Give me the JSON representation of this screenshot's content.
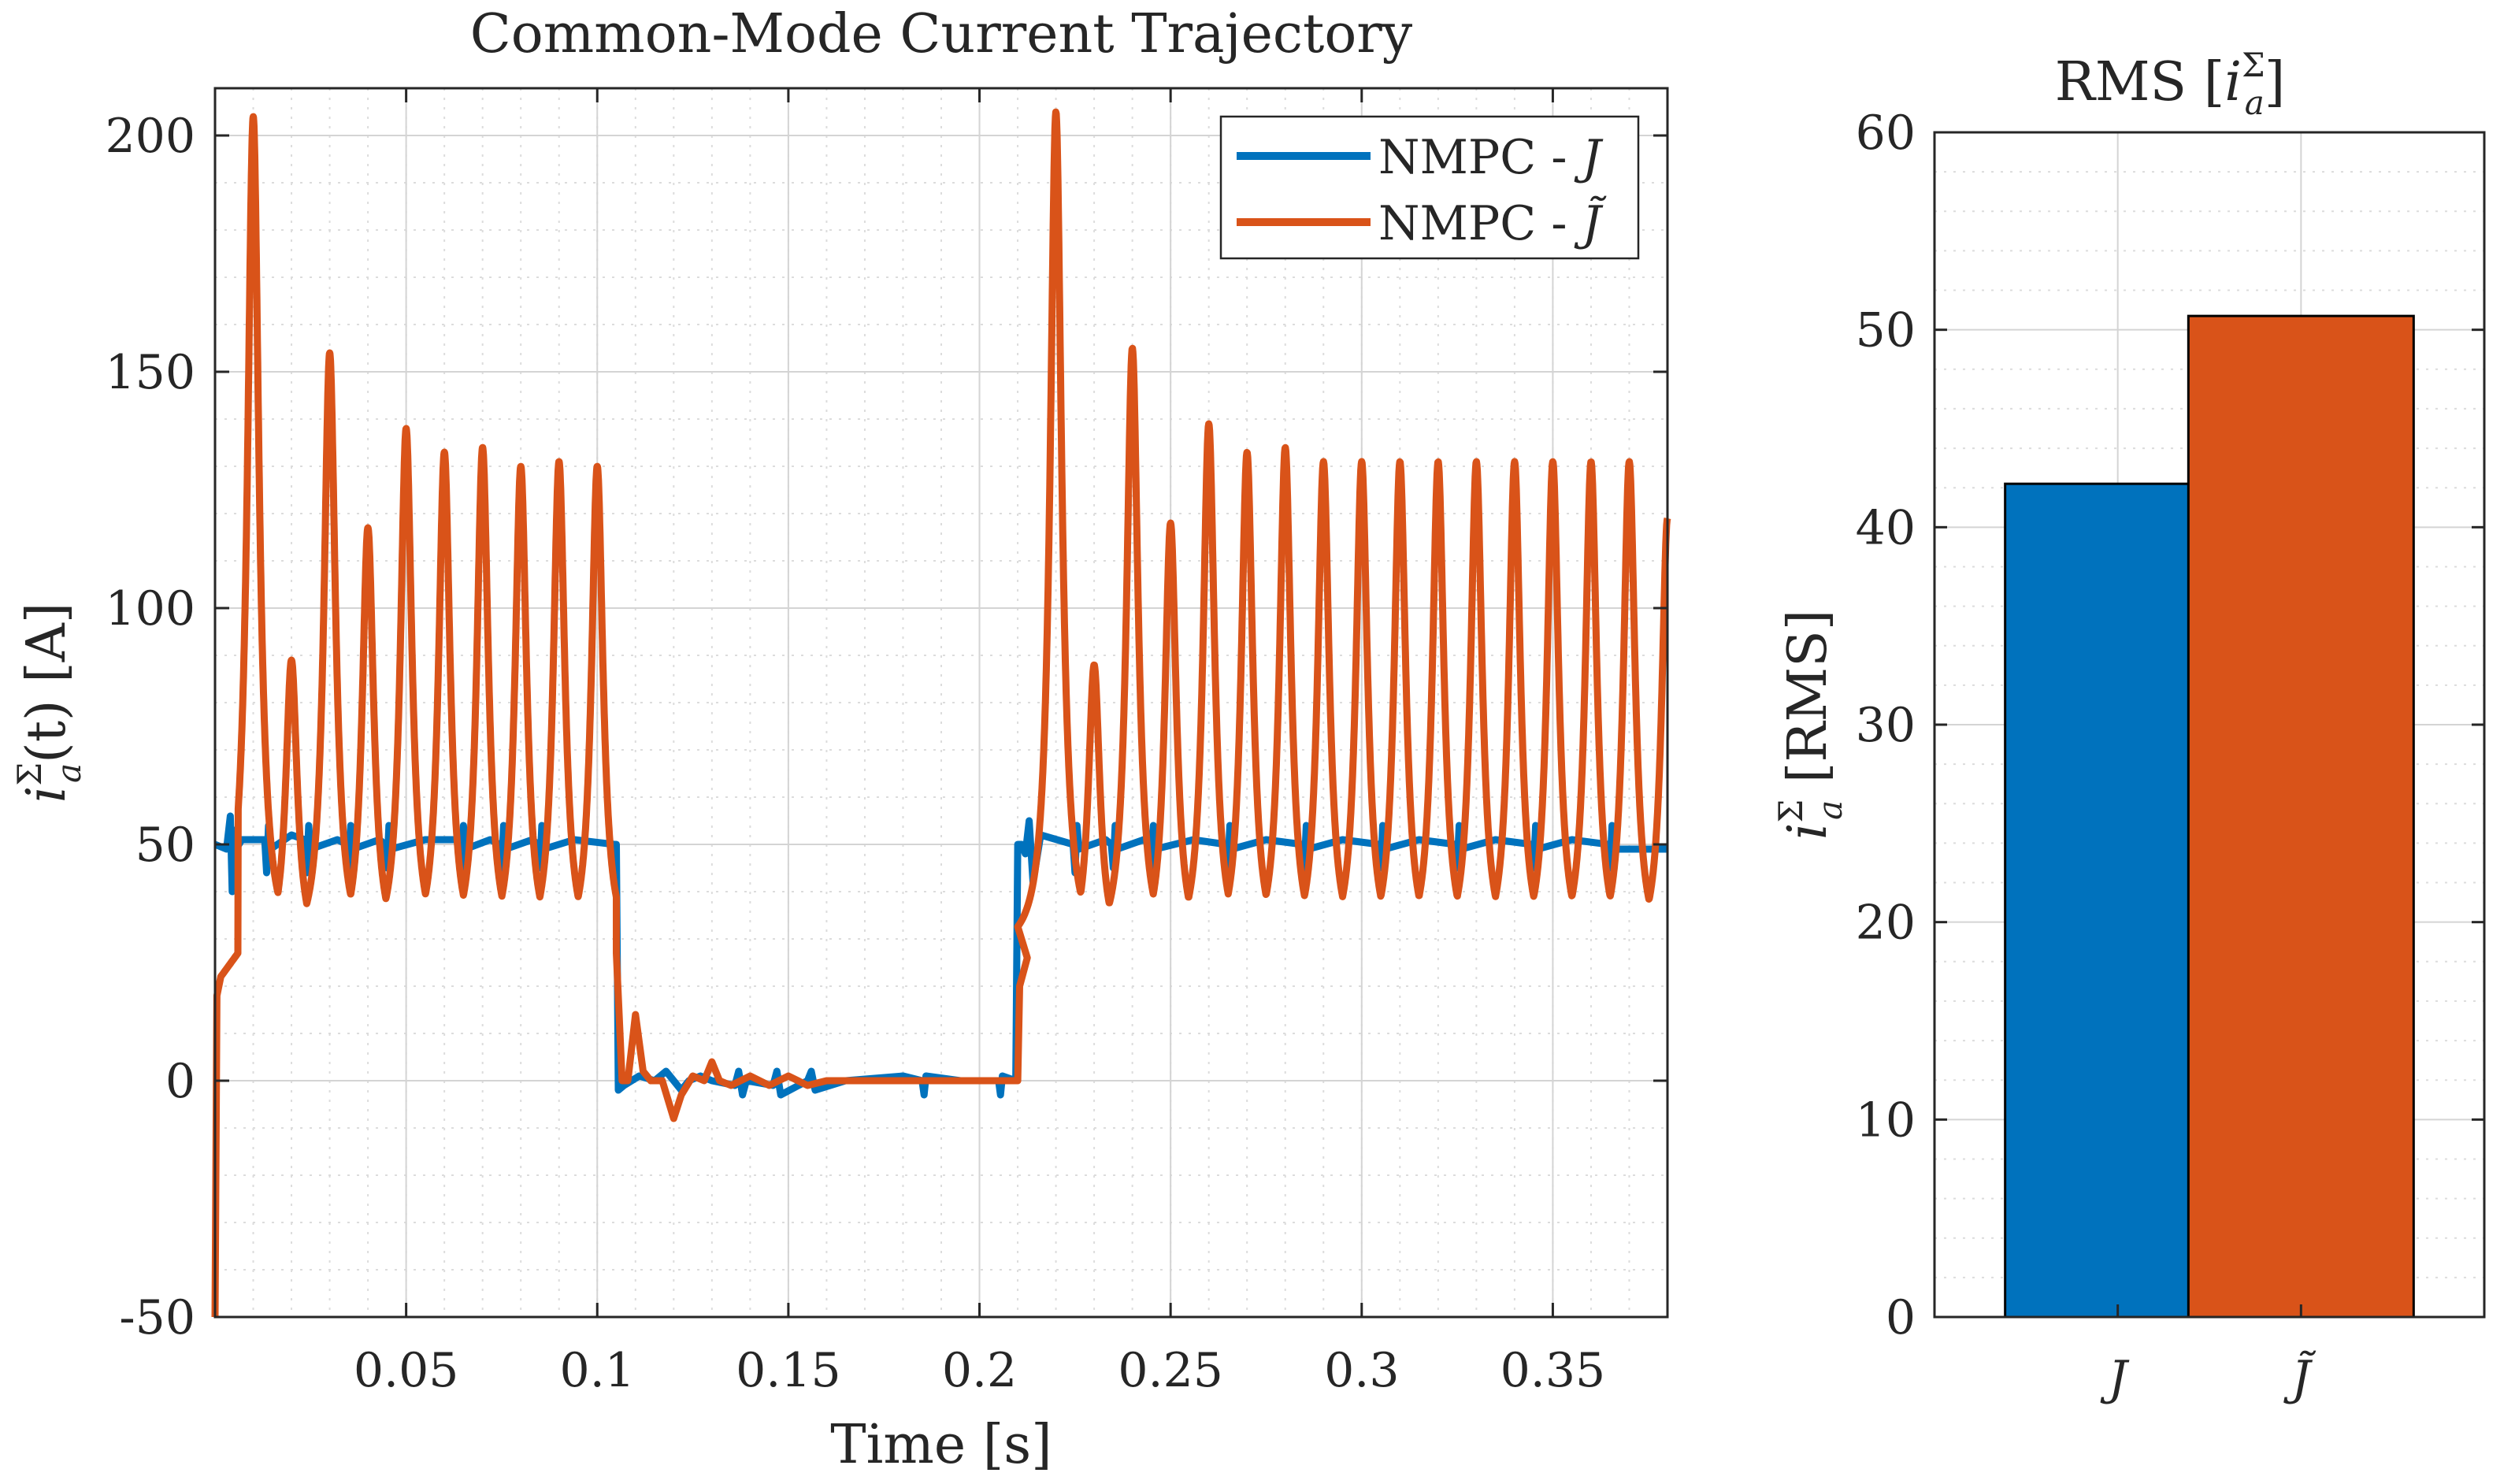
{
  "colors": {
    "J": "#0072bd",
    "Jtilde": "#d95319",
    "grid": "#dcdcdc",
    "axis": "#262626"
  },
  "chart_data": [
    {
      "type": "line",
      "title": "Common-Mode Current Trajectory",
      "xlabel": "Time [s]",
      "ylabel": "i_a^Σ(t) [A]",
      "ylabel_main": "i",
      "ylabel_sup": "Σ",
      "ylabel_sub": "a",
      "ylabel_rest": "(t) [A]",
      "xlim": [
        0,
        0.38
      ],
      "ylim": [
        -50,
        210
      ],
      "xticks": [
        0.05,
        0.1,
        0.15,
        0.2,
        0.25,
        0.3,
        0.35
      ],
      "xtick_labels": [
        "0.05",
        "0.1",
        "0.15",
        "0.2",
        "0.25",
        "0.3",
        "0.35"
      ],
      "yticks": [
        -50,
        0,
        50,
        100,
        150,
        200
      ],
      "ytick_labels": [
        "-50",
        "0",
        "50",
        "100",
        "150",
        "200"
      ],
      "grid": true,
      "minor_grid": true,
      "legend_position": "top-right",
      "series": [
        {
          "name": "NMPC - J",
          "legend_text": "NMPC - ",
          "legend_sym": "J",
          "color": "#0072bd",
          "x": [
            0,
            0.003,
            0.004,
            0.0045,
            0.005,
            0.0055,
            0.007,
            0.013,
            0.0135,
            0.014,
            0.0145,
            0.02,
            0.0235,
            0.024,
            0.0245,
            0.025,
            0.032,
            0.0345,
            0.035,
            0.0355,
            0.036,
            0.043,
            0.0445,
            0.045,
            0.0455,
            0.046,
            0.055,
            0.064,
            0.0645,
            0.065,
            0.0655,
            0.072,
            0.0745,
            0.075,
            0.0755,
            0.076,
            0.083,
            0.0845,
            0.085,
            0.0855,
            0.086,
            0.094,
            0.1045,
            0.105,
            0.1055,
            0.107,
            0.111,
            0.115,
            0.118,
            0.122,
            0.124,
            0.127,
            0.13,
            0.136,
            0.137,
            0.138,
            0.139,
            0.146,
            0.147,
            0.148,
            0.155,
            0.156,
            0.157,
            0.165,
            0.18,
            0.185,
            0.1855,
            0.186,
            0.195,
            0.205,
            0.2055,
            0.206,
            0.2095,
            0.21,
            0.211,
            0.212,
            0.213,
            0.214,
            0.216,
            0.2245,
            0.225,
            0.2255,
            0.226,
            0.233,
            0.2345,
            0.235,
            0.2355,
            0.236,
            0.243,
            0.2445,
            0.245,
            0.2455,
            0.246,
            0.256,
            0.2645,
            0.265,
            0.2655,
            0.266,
            0.275,
            0.2845,
            0.285,
            0.2855,
            0.286,
            0.295,
            0.3045,
            0.305,
            0.3055,
            0.306,
            0.315,
            0.3245,
            0.325,
            0.3255,
            0.326,
            0.335,
            0.3445,
            0.345,
            0.3455,
            0.346,
            0.355,
            0.3645,
            0.365,
            0.3655,
            0.366,
            0.38
          ],
          "y": [
            50,
            49,
            56,
            40,
            53,
            49,
            51,
            51,
            44,
            54,
            49,
            52,
            51,
            44,
            54,
            49,
            51,
            50,
            45,
            54,
            49,
            51,
            50,
            45,
            54,
            49,
            51,
            51,
            45,
            54,
            49,
            51,
            50,
            45,
            54,
            49,
            51,
            50,
            45,
            54,
            49,
            51,
            50,
            50,
            -2,
            -1,
            1,
            0,
            2,
            -2,
            0,
            1,
            0,
            -1,
            2,
            -3,
            0,
            -1,
            2,
            -3,
            0,
            2,
            -2,
            0,
            1,
            0,
            -3,
            1,
            0,
            0,
            -3,
            1,
            0,
            50,
            50,
            48,
            55,
            42,
            52,
            50,
            44,
            54,
            49,
            51,
            50,
            45,
            54,
            49,
            51,
            50,
            45,
            54,
            49,
            51,
            50,
            45,
            54,
            49,
            51,
            50,
            45,
            54,
            49,
            51,
            50,
            45,
            54,
            49,
            51,
            50,
            45,
            54,
            49,
            51,
            50,
            45,
            54,
            49,
            51,
            50,
            45,
            54,
            49,
            49
          ]
        },
        {
          "name": "NMPC - J̃",
          "legend_text": "NMPC - ",
          "legend_sym": "J̃",
          "color": "#d95319",
          "segments": [
            {
              "t0": 0.0015,
              "t1": 0.105,
              "base": 27,
              "start_shape": true,
              "peaks": [
                [
                  0.01,
                  204
                ],
                [
                  0.02,
                  89
                ],
                [
                  0.03,
                  154
                ],
                [
                  0.04,
                  117
                ],
                [
                  0.05,
                  138
                ],
                [
                  0.06,
                  133
                ],
                [
                  0.07,
                  134
                ],
                [
                  0.08,
                  130
                ],
                [
                  0.09,
                  131
                ],
                [
                  0.1,
                  130
                ]
              ]
            },
            {
              "t0": 0.21,
              "t1": 0.38,
              "base": 27,
              "start_shape": false,
              "peaks": [
                [
                  0.22,
                  205
                ],
                [
                  0.23,
                  88
                ],
                [
                  0.24,
                  155
                ],
                [
                  0.25,
                  118
                ],
                [
                  0.26,
                  139
                ],
                [
                  0.27,
                  133
                ],
                [
                  0.28,
                  134
                ],
                [
                  0.29,
                  131
                ],
                [
                  0.3,
                  131
                ],
                [
                  0.31,
                  131
                ],
                [
                  0.32,
                  131
                ],
                [
                  0.33,
                  131
                ],
                [
                  0.34,
                  131
                ],
                [
                  0.35,
                  131
                ],
                [
                  0.36,
                  131
                ],
                [
                  0.37,
                  131
                ],
                [
                  0.38,
                  119
                ]
              ]
            }
          ],
          "transient_x": [
            0.105,
            0.1065,
            0.108,
            0.11,
            0.112,
            0.114,
            0.117,
            0.12,
            0.122,
            0.125,
            0.128,
            0.13,
            0.132,
            0.135,
            0.14,
            0.145,
            0.15,
            0.155,
            0.16,
            0.17,
            0.18,
            0.19,
            0.2,
            0.21
          ],
          "transient_y": [
            27,
            0,
            0,
            14,
            2,
            0,
            0,
            -8,
            -3,
            1,
            0,
            4,
            0,
            -1,
            1,
            -1,
            1,
            -1,
            0,
            0,
            0,
            0,
            0,
            0
          ],
          "initial_x": [
            0,
            0.0005,
            0.0015
          ],
          "initial_y": [
            -50,
            18,
            22
          ]
        }
      ]
    },
    {
      "type": "bar",
      "title": "RMS [i_a^Σ]",
      "title_main": "RMS [",
      "title_i": "i",
      "title_sup": "Σ",
      "title_sub": "a",
      "title_close": "]",
      "ylabel": "i_a^Σ [RMS]",
      "ylabel_main": "i",
      "ylabel_sup": "Σ",
      "ylabel_sub": "a",
      "ylabel_rest": " [RMS]",
      "categories": [
        "J",
        "J̃"
      ],
      "values": [
        42.2,
        50.7
      ],
      "bar_colors": [
        "#0072bd",
        "#d95319"
      ],
      "ylim": [
        0,
        60
      ],
      "yticks": [
        0,
        10,
        20,
        30,
        40,
        50,
        60
      ],
      "ytick_labels": [
        "0",
        "10",
        "20",
        "30",
        "40",
        "50",
        "60"
      ],
      "grid": true,
      "minor_grid": true
    }
  ]
}
